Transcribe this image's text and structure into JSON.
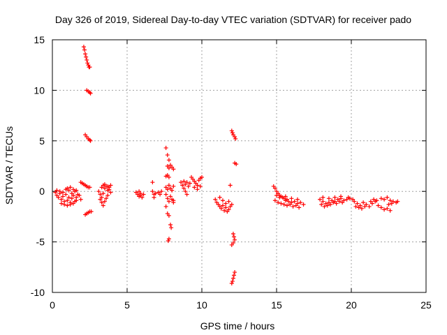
{
  "chart_data": {
    "type": "scatter",
    "title": "Day 326 of 2019, Sidereal Day-to-day VTEC variation (SDTVAR) for receiver pado",
    "xlabel": "GPS time / hours",
    "ylabel": "SDTVAR / TECUs",
    "xlim": [
      0,
      25
    ],
    "ylim": [
      -10,
      15
    ],
    "xticks": [
      0,
      5,
      10,
      15,
      20,
      25
    ],
    "yticks": [
      -10,
      -5,
      0,
      5,
      10,
      15
    ],
    "xtick_labels": [
      "0",
      "5",
      "10",
      "15",
      "20",
      "25"
    ],
    "ytick_labels": [
      "-10",
      "-5",
      "0",
      "5",
      "10",
      "15"
    ],
    "grid": true,
    "marker": "+",
    "color": "#ff0000",
    "series": [
      {
        "name": "SDTVAR",
        "points": [
          [
            0.2,
            -0.1
          ],
          [
            0.3,
            -0.4
          ],
          [
            0.4,
            -0.6
          ],
          [
            0.5,
            -0.2
          ],
          [
            0.6,
            -0.8
          ],
          [
            0.7,
            -0.5
          ],
          [
            0.8,
            -1.0
          ],
          [
            0.9,
            -0.3
          ],
          [
            1.0,
            -0.9
          ],
          [
            1.1,
            -0.6
          ],
          [
            1.2,
            -1.1
          ],
          [
            1.3,
            -0.7
          ],
          [
            1.4,
            -0.4
          ],
          [
            1.5,
            -1.0
          ],
          [
            1.6,
            -0.6
          ],
          [
            0.3,
            0.1
          ],
          [
            0.5,
            0.0
          ],
          [
            0.7,
            -0.1
          ],
          [
            0.9,
            0.2
          ],
          [
            1.1,
            0.1
          ],
          [
            1.3,
            -0.2
          ],
          [
            1.5,
            0.0
          ],
          [
            1.7,
            -0.3
          ],
          [
            0.6,
            -1.2
          ],
          [
            0.8,
            -1.3
          ],
          [
            1.0,
            -1.4
          ],
          [
            1.2,
            -1.3
          ],
          [
            1.4,
            -1.2
          ],
          [
            1.6,
            -0.9
          ],
          [
            1.0,
            0.3
          ],
          [
            1.2,
            0.4
          ],
          [
            1.4,
            0.2
          ],
          [
            1.6,
            0.1
          ],
          [
            1.8,
            -0.4
          ],
          [
            1.9,
            -0.8
          ],
          [
            2.1,
            14.3
          ],
          [
            2.15,
            14.0
          ],
          [
            2.2,
            13.6
          ],
          [
            2.25,
            13.3
          ],
          [
            2.3,
            13.0
          ],
          [
            2.35,
            12.7
          ],
          [
            2.4,
            12.5
          ],
          [
            2.45,
            12.3
          ],
          [
            2.5,
            12.3
          ],
          [
            2.3,
            10.0
          ],
          [
            2.4,
            9.9
          ],
          [
            2.5,
            9.8
          ],
          [
            2.55,
            9.7
          ],
          [
            2.2,
            5.6
          ],
          [
            2.3,
            5.4
          ],
          [
            2.4,
            5.2
          ],
          [
            2.5,
            5.1
          ],
          [
            2.55,
            5.0
          ],
          [
            1.9,
            0.9
          ],
          [
            2.0,
            0.8
          ],
          [
            2.1,
            0.7
          ],
          [
            2.2,
            0.6
          ],
          [
            2.3,
            0.5
          ],
          [
            2.4,
            0.4
          ],
          [
            2.5,
            0.4
          ],
          [
            2.2,
            -2.3
          ],
          [
            2.3,
            -2.2
          ],
          [
            2.4,
            -2.1
          ],
          [
            2.5,
            -2.0
          ],
          [
            2.6,
            -2.0
          ],
          [
            3.1,
            0.0
          ],
          [
            3.2,
            -0.3
          ],
          [
            3.3,
            -0.6
          ],
          [
            3.4,
            -0.2
          ],
          [
            3.5,
            0.3
          ],
          [
            3.6,
            0.5
          ],
          [
            3.7,
            0.1
          ],
          [
            3.8,
            0.4
          ],
          [
            3.9,
            0.6
          ],
          [
            3.2,
            -0.8
          ],
          [
            3.3,
            -1.1
          ],
          [
            3.4,
            -1.4
          ],
          [
            3.5,
            -1.0
          ],
          [
            3.6,
            -0.7
          ],
          [
            3.7,
            -0.4
          ],
          [
            3.3,
            0.4
          ],
          [
            3.4,
            0.6
          ],
          [
            3.5,
            0.7
          ],
          [
            3.7,
            0.5
          ],
          [
            3.8,
            0.2
          ],
          [
            3.9,
            -0.1
          ],
          [
            5.6,
            -0.1
          ],
          [
            5.7,
            -0.3
          ],
          [
            5.8,
            -0.5
          ],
          [
            5.9,
            -0.2
          ],
          [
            6.0,
            -0.6
          ],
          [
            5.8,
            0.0
          ],
          [
            5.9,
            -0.4
          ],
          [
            6.1,
            -0.3
          ],
          [
            6.7,
            0.9
          ],
          [
            6.7,
            0.0
          ],
          [
            6.8,
            -0.3
          ],
          [
            6.8,
            -0.6
          ],
          [
            6.9,
            -0.2
          ],
          [
            7.1,
            -0.1
          ],
          [
            7.2,
            -0.3
          ],
          [
            7.3,
            0.0
          ],
          [
            7.6,
            4.3
          ],
          [
            7.7,
            3.6
          ],
          [
            7.8,
            3.1
          ],
          [
            7.7,
            2.5
          ],
          [
            7.8,
            2.3
          ],
          [
            7.9,
            2.6
          ],
          [
            8.0,
            2.4
          ],
          [
            8.1,
            2.2
          ],
          [
            7.7,
            1.6
          ],
          [
            7.8,
            1.4
          ],
          [
            7.6,
            1.5
          ],
          [
            7.6,
            0.4
          ],
          [
            7.7,
            0.2
          ],
          [
            7.8,
            0.6
          ],
          [
            7.9,
            0.3
          ],
          [
            8.0,
            0.1
          ],
          [
            8.1,
            0.5
          ],
          [
            7.6,
            -0.3
          ],
          [
            7.7,
            -0.7
          ],
          [
            7.8,
            -1.0
          ],
          [
            7.9,
            -0.5
          ],
          [
            8.0,
            -0.8
          ],
          [
            8.1,
            -1.1
          ],
          [
            7.6,
            -1.5
          ],
          [
            7.7,
            -2.2
          ],
          [
            7.8,
            -2.4
          ],
          [
            7.9,
            -3.3
          ],
          [
            7.95,
            -3.6
          ],
          [
            7.8,
            -4.7
          ],
          [
            7.75,
            -4.9
          ],
          [
            8.1,
            -0.9
          ],
          [
            8.6,
            0.9
          ],
          [
            8.7,
            0.6
          ],
          [
            8.8,
            0.3
          ],
          [
            8.9,
            0.0
          ],
          [
            9.0,
            -0.3
          ],
          [
            9.1,
            0.5
          ],
          [
            9.2,
            0.8
          ],
          [
            8.8,
            1.0
          ],
          [
            8.9,
            0.7
          ],
          [
            9.0,
            0.9
          ],
          [
            9.3,
            1.4
          ],
          [
            9.4,
            1.2
          ],
          [
            9.5,
            1.0
          ],
          [
            9.6,
            0.8
          ],
          [
            9.7,
            0.6
          ],
          [
            9.8,
            1.1
          ],
          [
            9.9,
            1.3
          ],
          [
            10.0,
            1.4
          ],
          [
            9.5,
            0.4
          ],
          [
            9.7,
            0.2
          ],
          [
            9.9,
            0.5
          ],
          [
            10.9,
            -0.8
          ],
          [
            11.0,
            -1.1
          ],
          [
            11.1,
            -1.3
          ],
          [
            11.2,
            -1.5
          ],
          [
            11.3,
            -1.7
          ],
          [
            11.4,
            -1.4
          ],
          [
            11.5,
            -1.9
          ],
          [
            11.6,
            -1.6
          ],
          [
            11.7,
            -2.0
          ],
          [
            11.8,
            -1.8
          ],
          [
            11.9,
            -1.5
          ],
          [
            12.0,
            -1.3
          ],
          [
            11.2,
            -0.6
          ],
          [
            11.4,
            -0.9
          ],
          [
            11.6,
            -1.2
          ],
          [
            11.8,
            -1.0
          ],
          [
            11.9,
            0.6
          ],
          [
            12.0,
            6.0
          ],
          [
            12.05,
            5.8
          ],
          [
            12.1,
            5.6
          ],
          [
            12.2,
            5.4
          ],
          [
            12.25,
            5.2
          ],
          [
            12.2,
            2.8
          ],
          [
            12.3,
            2.7
          ],
          [
            12.1,
            -4.2
          ],
          [
            12.15,
            -4.5
          ],
          [
            12.2,
            -4.8
          ],
          [
            12.1,
            -5.1
          ],
          [
            12.0,
            -5.3
          ],
          [
            12.2,
            -8.0
          ],
          [
            12.15,
            -8.3
          ],
          [
            12.1,
            -8.6
          ],
          [
            12.05,
            -8.9
          ],
          [
            12.0,
            -9.1
          ],
          [
            14.8,
            0.5
          ],
          [
            14.9,
            0.3
          ],
          [
            15.0,
            0.0
          ],
          [
            15.1,
            -0.2
          ],
          [
            15.2,
            -0.4
          ],
          [
            15.3,
            -0.5
          ],
          [
            15.4,
            -0.6
          ],
          [
            15.5,
            -0.7
          ],
          [
            15.6,
            -0.9
          ],
          [
            15.7,
            -0.8
          ],
          [
            15.8,
            -1.0
          ],
          [
            16.0,
            -1.1
          ],
          [
            16.2,
            -1.0
          ],
          [
            16.4,
            -1.2
          ],
          [
            16.6,
            -1.1
          ],
          [
            16.8,
            -1.3
          ],
          [
            14.9,
            -0.9
          ],
          [
            15.1,
            -1.1
          ],
          [
            15.3,
            -1.2
          ],
          [
            15.5,
            -1.3
          ],
          [
            15.7,
            -1.4
          ],
          [
            15.9,
            -1.3
          ],
          [
            16.1,
            -1.5
          ],
          [
            16.3,
            -1.4
          ],
          [
            16.5,
            -1.6
          ],
          [
            15.0,
            -0.4
          ],
          [
            15.2,
            -0.6
          ],
          [
            15.6,
            -0.5
          ],
          [
            16.0,
            -0.7
          ],
          [
            16.4,
            -0.8
          ],
          [
            17.9,
            -0.8
          ],
          [
            18.1,
            -1.0
          ],
          [
            18.3,
            -1.2
          ],
          [
            18.5,
            -1.1
          ],
          [
            18.7,
            -0.9
          ],
          [
            18.9,
            -1.0
          ],
          [
            19.1,
            -0.8
          ],
          [
            19.3,
            -0.7
          ],
          [
            19.5,
            -0.9
          ],
          [
            19.7,
            -0.8
          ],
          [
            19.9,
            -0.7
          ],
          [
            20.1,
            -0.8
          ],
          [
            18.0,
            -1.3
          ],
          [
            18.2,
            -1.5
          ],
          [
            18.4,
            -1.4
          ],
          [
            18.6,
            -1.3
          ],
          [
            18.8,
            -1.1
          ],
          [
            19.0,
            -1.2
          ],
          [
            19.2,
            -1.0
          ],
          [
            19.4,
            -1.1
          ],
          [
            18.1,
            -0.6
          ],
          [
            18.5,
            -0.7
          ],
          [
            18.9,
            -0.6
          ],
          [
            19.3,
            -0.5
          ],
          [
            19.8,
            -0.6
          ],
          [
            20.2,
            -1.0
          ],
          [
            20.4,
            -1.2
          ],
          [
            20.6,
            -1.4
          ],
          [
            20.8,
            -1.1
          ],
          [
            21.0,
            -1.3
          ],
          [
            21.2,
            -1.5
          ],
          [
            21.4,
            -1.2
          ],
          [
            21.6,
            -1.0
          ],
          [
            21.8,
            -1.4
          ],
          [
            22.0,
            -1.6
          ],
          [
            22.2,
            -1.8
          ],
          [
            22.4,
            -1.7
          ],
          [
            22.6,
            -1.9
          ],
          [
            20.3,
            -1.5
          ],
          [
            20.5,
            -1.6
          ],
          [
            20.7,
            -1.7
          ],
          [
            20.9,
            -1.5
          ],
          [
            21.3,
            -1.0
          ],
          [
            21.5,
            -0.8
          ],
          [
            21.7,
            -0.9
          ],
          [
            22.0,
            -0.7
          ],
          [
            22.2,
            -0.8
          ],
          [
            22.4,
            -0.6
          ],
          [
            22.6,
            -0.9
          ],
          [
            22.8,
            -1.0
          ],
          [
            23.0,
            -1.1
          ],
          [
            23.1,
            -1.0
          ],
          [
            22.5,
            -1.3
          ],
          [
            22.7,
            -1.2
          ]
        ]
      }
    ]
  }
}
